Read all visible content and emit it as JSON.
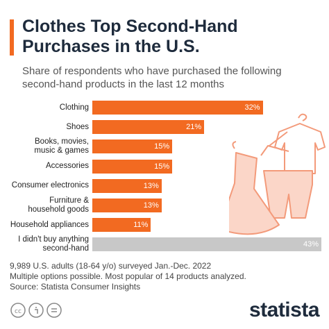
{
  "title": "Clothes Top Second-Hand Purchases in the U.S.",
  "subtitle": "Share of respondents who have purchased the following second-hand products in the last 12 months",
  "chart_data": {
    "type": "bar",
    "categories": [
      "Clothing",
      "Shoes",
      "Books, movies,\nmusic & games",
      "Accessories",
      "Consumer electronics",
      "Furniture &\nhousehold goods",
      "Household appliances",
      "I didn't buy anything\nsecond-hand"
    ],
    "values": [
      32,
      21,
      15,
      15,
      13,
      13,
      11,
      43
    ],
    "value_labels": [
      "32%",
      "21%",
      "15%",
      "15%",
      "13%",
      "13%",
      "11%",
      "43%"
    ],
    "colors": [
      "#f26a21",
      "#f26a21",
      "#f26a21",
      "#f26a21",
      "#f26a21",
      "#f26a21",
      "#f26a21",
      "#c8c8c8"
    ],
    "xlim": [
      0,
      43
    ]
  },
  "notes": [
    "9,989 U.S. adults (18-64 y/o) surveyed Jan.-Dec. 2022",
    "Multiple options possible. Most popular of 14 products analyzed.",
    "Source: Statista Consumer Insights"
  ],
  "logo": "statista"
}
